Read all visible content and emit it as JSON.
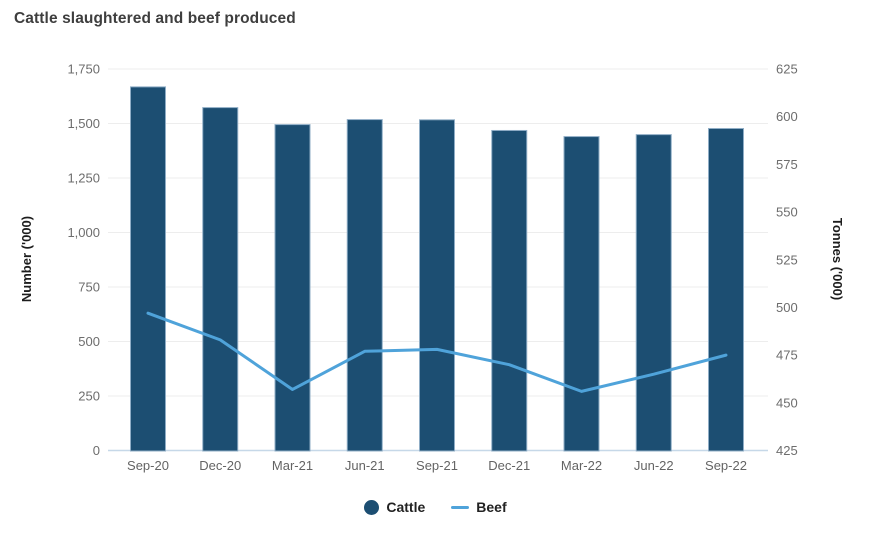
{
  "chart_data": {
    "type": "combo",
    "title": "Cattle slaughtered and beef produced",
    "categories": [
      "Sep-20",
      "Dec-20",
      "Mar-21",
      "Jun-21",
      "Sep-21",
      "Dec-21",
      "Mar-22",
      "Jun-22",
      "Sep-22"
    ],
    "series": [
      {
        "name": "Cattle",
        "type": "bar",
        "axis": "left",
        "color": "#1c4e72",
        "border_color": "#8fadc6",
        "values": [
          1668,
          1573,
          1495,
          1518,
          1517,
          1468,
          1440,
          1449,
          1477
        ]
      },
      {
        "name": "Beef",
        "type": "line",
        "axis": "right",
        "color": "#4fa3da",
        "values": [
          497,
          483,
          457,
          477,
          478,
          470,
          456,
          465,
          475
        ]
      }
    ],
    "axes": {
      "left": {
        "label": "Number ('000)",
        "min": 0,
        "max": 1750,
        "tick_step": 250,
        "tick_labels": [
          "0",
          "250",
          "500",
          "750",
          "1,000",
          "1,250",
          "1,500",
          "1,750"
        ]
      },
      "right": {
        "label": "Tonnes ('000)",
        "min": 425,
        "max": 625,
        "tick_step": 25,
        "tick_labels": [
          "425",
          "450",
          "475",
          "500",
          "525",
          "550",
          "575",
          "600",
          "625"
        ]
      }
    },
    "grid": {
      "show": true,
      "color": "#ededed",
      "baseline_color": "#c6d8e8"
    },
    "legend": {
      "position": "bottom",
      "items": [
        {
          "label": "Cattle",
          "marker": "circle",
          "color": "#1c4e72"
        },
        {
          "label": "Beef",
          "marker": "line",
          "color": "#4fa3da"
        }
      ]
    }
  }
}
